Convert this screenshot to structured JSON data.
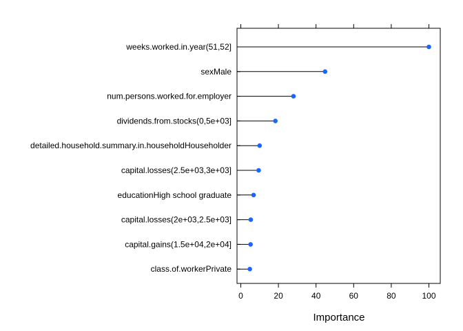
{
  "chart_data": {
    "type": "lollipop",
    "xlabel": "Importance",
    "xlim": [
      0,
      100
    ],
    "xticks": [
      0,
      20,
      40,
      60,
      80,
      100
    ],
    "grid": false,
    "point_color": "#1a66ff",
    "line_color": "#000000",
    "categories": [
      "weeks.worked.in.year(51,52]",
      "sexMale",
      "num.persons.worked.for.employer",
      "dividends.from.stocks(0,5e+03]",
      "detailed.household.summary.in.householdHouseholder",
      "capital.losses(2.5e+03,3e+03]",
      "educationHigh school graduate",
      "capital.losses(2e+03,2.5e+03]",
      "capital.gains(1.5e+04,2e+04]",
      "class.of.workerPrivate"
    ],
    "values": [
      100,
      44.8,
      28,
      18.4,
      10,
      9.5,
      6.8,
      5.3,
      5.2,
      4.8
    ]
  }
}
